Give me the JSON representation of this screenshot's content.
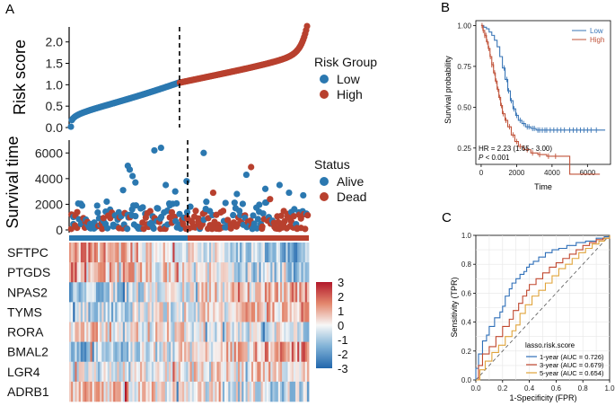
{
  "panels": {
    "a": "A",
    "b": "B",
    "c": "C"
  },
  "colors": {
    "low": "#2b78b0",
    "high": "#b8402e",
    "alive": "#2b78b0",
    "dead": "#b8402e",
    "km_low": "#3a76b6",
    "km_high": "#c0533a",
    "roc_1": "#2f6fb8",
    "roc_3": "#c0472e",
    "roc_5": "#e0a43a"
  },
  "chart_data": [
    {
      "id": "risk_score",
      "type": "scatter",
      "ylabel": "Risk score",
      "yticks": [
        0.0,
        0.5,
        1.0,
        1.5,
        2.0
      ],
      "ytick_labels": [
        "0.0",
        "0.5",
        "1.0",
        "1.5",
        "2.0"
      ],
      "ylim": [
        0,
        2.35
      ],
      "n_patients": 250,
      "cutoff_index": 115,
      "score_min": 0.02,
      "score_at_cutoff": 1.05,
      "score_max": 2.32,
      "legend": {
        "title": "Risk Group",
        "entries": [
          "Low",
          "High"
        ]
      }
    },
    {
      "id": "survival_time",
      "type": "scatter",
      "ylabel": "Survival time",
      "yticks": [
        0,
        2000,
        4000,
        6000
      ],
      "ytick_labels": [
        "0",
        "2000",
        "4000",
        "6000"
      ],
      "ylim": [
        0,
        7000
      ],
      "legend": {
        "title": "Status",
        "entries": [
          "Alive",
          "Dead"
        ]
      },
      "alive_low_outliers": [
        [
          60,
          5000
        ],
        [
          62,
          4700
        ],
        [
          88,
          6200
        ],
        [
          95,
          6400
        ],
        [
          65,
          4200
        ],
        [
          68,
          3700
        ],
        [
          100,
          3500
        ],
        [
          110,
          3000
        ],
        [
          55,
          3100
        ],
        [
          122,
          3800
        ]
      ],
      "alive_high_outliers": [
        [
          140,
          6000
        ],
        [
          185,
          4300
        ],
        [
          220,
          3500
        ],
        [
          230,
          2900
        ],
        [
          205,
          3200
        ],
        [
          175,
          2800
        ],
        [
          245,
          2700
        ]
      ],
      "dead_high_outliers": [
        [
          190,
          4900
        ],
        [
          150,
          2900
        ],
        [
          210,
          2400
        ]
      ]
    },
    {
      "id": "heatmap",
      "type": "heatmap",
      "genes": [
        "SFTPC",
        "PTGDS",
        "NPAS2",
        "TYMS",
        "RORA",
        "BMAL2",
        "LGR4",
        "ADRB1"
      ],
      "gene_trend": [
        -0.9,
        -0.8,
        0.7,
        0.6,
        -0.3,
        0.9,
        0.3,
        -0.5
      ],
      "colorbar_ticks": [
        3,
        2,
        1,
        0,
        -1,
        -2,
        -3
      ],
      "colorbar_labels": [
        "3",
        "2",
        "1",
        "0",
        "-1",
        "-2",
        "-3"
      ],
      "vmin": -3,
      "vmax": 3
    },
    {
      "id": "km",
      "type": "line",
      "xlabel": "Time",
      "ylabel": "Survival probability",
      "xticks": [
        0,
        2000,
        4000,
        6000
      ],
      "xtick_labels": [
        "0",
        "2000",
        "4000",
        "6000"
      ],
      "yticks": [
        0.25,
        0.5,
        0.75,
        1.0
      ],
      "ytick_labels": [
        "0.25",
        "0.50",
        "0.75",
        "1.00"
      ],
      "xlim": [
        -300,
        7300
      ],
      "ylim": [
        0.15,
        1.03
      ],
      "series": [
        {
          "name": "Low",
          "points": [
            [
              0,
              1.0
            ],
            [
              150,
              0.99
            ],
            [
              300,
              0.98
            ],
            [
              450,
              0.96
            ],
            [
              600,
              0.94
            ],
            [
              750,
              0.91
            ],
            [
              900,
              0.87
            ],
            [
              1050,
              0.81
            ],
            [
              1200,
              0.74
            ],
            [
              1350,
              0.67
            ],
            [
              1500,
              0.6
            ],
            [
              1650,
              0.54
            ],
            [
              1800,
              0.49
            ],
            [
              1950,
              0.45
            ],
            [
              2100,
              0.42
            ],
            [
              2300,
              0.4
            ],
            [
              2500,
              0.38
            ],
            [
              2800,
              0.37
            ],
            [
              3100,
              0.36
            ],
            [
              3500,
              0.36
            ],
            [
              4500,
              0.36
            ],
            [
              5500,
              0.36
            ],
            [
              7000,
              0.36
            ]
          ]
        },
        {
          "name": "High",
          "points": [
            [
              0,
              1.0
            ],
            [
              100,
              0.97
            ],
            [
              200,
              0.94
            ],
            [
              300,
              0.9
            ],
            [
              400,
              0.86
            ],
            [
              500,
              0.81
            ],
            [
              600,
              0.76
            ],
            [
              700,
              0.71
            ],
            [
              800,
              0.66
            ],
            [
              900,
              0.61
            ],
            [
              1000,
              0.56
            ],
            [
              1100,
              0.51
            ],
            [
              1200,
              0.46
            ],
            [
              1350,
              0.42
            ],
            [
              1500,
              0.38
            ],
            [
              1700,
              0.33
            ],
            [
              1900,
              0.29
            ],
            [
              2100,
              0.26
            ],
            [
              2400,
              0.24
            ],
            [
              2800,
              0.22
            ],
            [
              3200,
              0.21
            ],
            [
              3700,
              0.2
            ],
            [
              4300,
              0.2
            ],
            [
              5000,
              0.2
            ],
            [
              5000,
              0.09
            ],
            [
              6700,
              0.09
            ]
          ]
        }
      ],
      "censor_low": [
        1300,
        1450,
        1550,
        1700,
        1850,
        2000,
        2200,
        2400,
        2600,
        2700,
        2900,
        3000,
        3200,
        3300,
        3450,
        3600,
        3700,
        3900,
        4100,
        4300,
        4500,
        4700,
        5000,
        5200,
        5400,
        5600,
        5800,
        6000,
        6200,
        6500
      ],
      "censor_high": [
        50,
        120,
        200,
        270,
        350,
        430,
        520,
        600,
        680,
        760,
        850,
        950,
        1050,
        1150,
        1250,
        1400,
        1600,
        1800,
        2000,
        2200,
        2600,
        2900,
        3300,
        3800,
        4200
      ],
      "legend": [
        "Low",
        "High"
      ],
      "hr_text": "HR = 2.23 (1.65 - 3.00)",
      "p_prefix": "P",
      "p_suffix": " < 0.001"
    },
    {
      "id": "roc",
      "type": "line",
      "xlabel": "1-Specificity (FPR)",
      "ylabel": "Sensitivity (TPR)",
      "ticks": [
        0.0,
        0.2,
        0.4,
        0.6,
        0.8,
        1.0
      ],
      "tick_labels": [
        "0.0",
        "0.2",
        "0.4",
        "0.6",
        "0.8",
        "1.0"
      ],
      "legend_title": "lasso.risk.score",
      "series": [
        {
          "name": "1-year (AUC = 0.726)",
          "points": [
            [
              0,
              0
            ],
            [
              0,
              0.08
            ],
            [
              0.02,
              0.18
            ],
            [
              0.05,
              0.27
            ],
            [
              0.08,
              0.31
            ],
            [
              0.1,
              0.37
            ],
            [
              0.14,
              0.43
            ],
            [
              0.18,
              0.47
            ],
            [
              0.2,
              0.51
            ],
            [
              0.22,
              0.58
            ],
            [
              0.25,
              0.63
            ],
            [
              0.27,
              0.67
            ],
            [
              0.3,
              0.7
            ],
            [
              0.33,
              0.73
            ],
            [
              0.36,
              0.75
            ],
            [
              0.38,
              0.78
            ],
            [
              0.4,
              0.8
            ],
            [
              0.43,
              0.82
            ],
            [
              0.47,
              0.85
            ],
            [
              0.52,
              0.88
            ],
            [
              0.57,
              0.9
            ],
            [
              0.62,
              0.91
            ],
            [
              0.68,
              0.93
            ],
            [
              0.75,
              0.95
            ],
            [
              0.82,
              0.96
            ],
            [
              0.9,
              0.98
            ],
            [
              0.96,
              0.99
            ],
            [
              1.0,
              1.0
            ]
          ]
        },
        {
          "name": "3-year (AUC = 0.679)",
          "points": [
            [
              0,
              0
            ],
            [
              0.02,
              0.1
            ],
            [
              0.05,
              0.18
            ],
            [
              0.1,
              0.23
            ],
            [
              0.15,
              0.3
            ],
            [
              0.2,
              0.37
            ],
            [
              0.25,
              0.42
            ],
            [
              0.28,
              0.48
            ],
            [
              0.32,
              0.53
            ],
            [
              0.35,
              0.58
            ],
            [
              0.38,
              0.62
            ],
            [
              0.4,
              0.66
            ],
            [
              0.45,
              0.7
            ],
            [
              0.5,
              0.74
            ],
            [
              0.55,
              0.78
            ],
            [
              0.6,
              0.81
            ],
            [
              0.65,
              0.84
            ],
            [
              0.7,
              0.87
            ],
            [
              0.75,
              0.9
            ],
            [
              0.8,
              0.93
            ],
            [
              0.85,
              0.95
            ],
            [
              0.9,
              0.97
            ],
            [
              0.95,
              0.98
            ],
            [
              1.0,
              1.0
            ]
          ]
        },
        {
          "name": "5-year (AUC = 0.654)",
          "points": [
            [
              0,
              0
            ],
            [
              0.03,
              0.07
            ],
            [
              0.07,
              0.13
            ],
            [
              0.12,
              0.19
            ],
            [
              0.17,
              0.24
            ],
            [
              0.22,
              0.3
            ],
            [
              0.27,
              0.34
            ],
            [
              0.3,
              0.38
            ],
            [
              0.33,
              0.46
            ],
            [
              0.37,
              0.52
            ],
            [
              0.42,
              0.58
            ],
            [
              0.47,
              0.62
            ],
            [
              0.52,
              0.67
            ],
            [
              0.57,
              0.72
            ],
            [
              0.62,
              0.77
            ],
            [
              0.67,
              0.8
            ],
            [
              0.72,
              0.84
            ],
            [
              0.77,
              0.88
            ],
            [
              0.82,
              0.91
            ],
            [
              0.87,
              0.94
            ],
            [
              0.92,
              0.96
            ],
            [
              0.96,
              0.98
            ],
            [
              1.0,
              1.0
            ]
          ]
        }
      ]
    }
  ]
}
